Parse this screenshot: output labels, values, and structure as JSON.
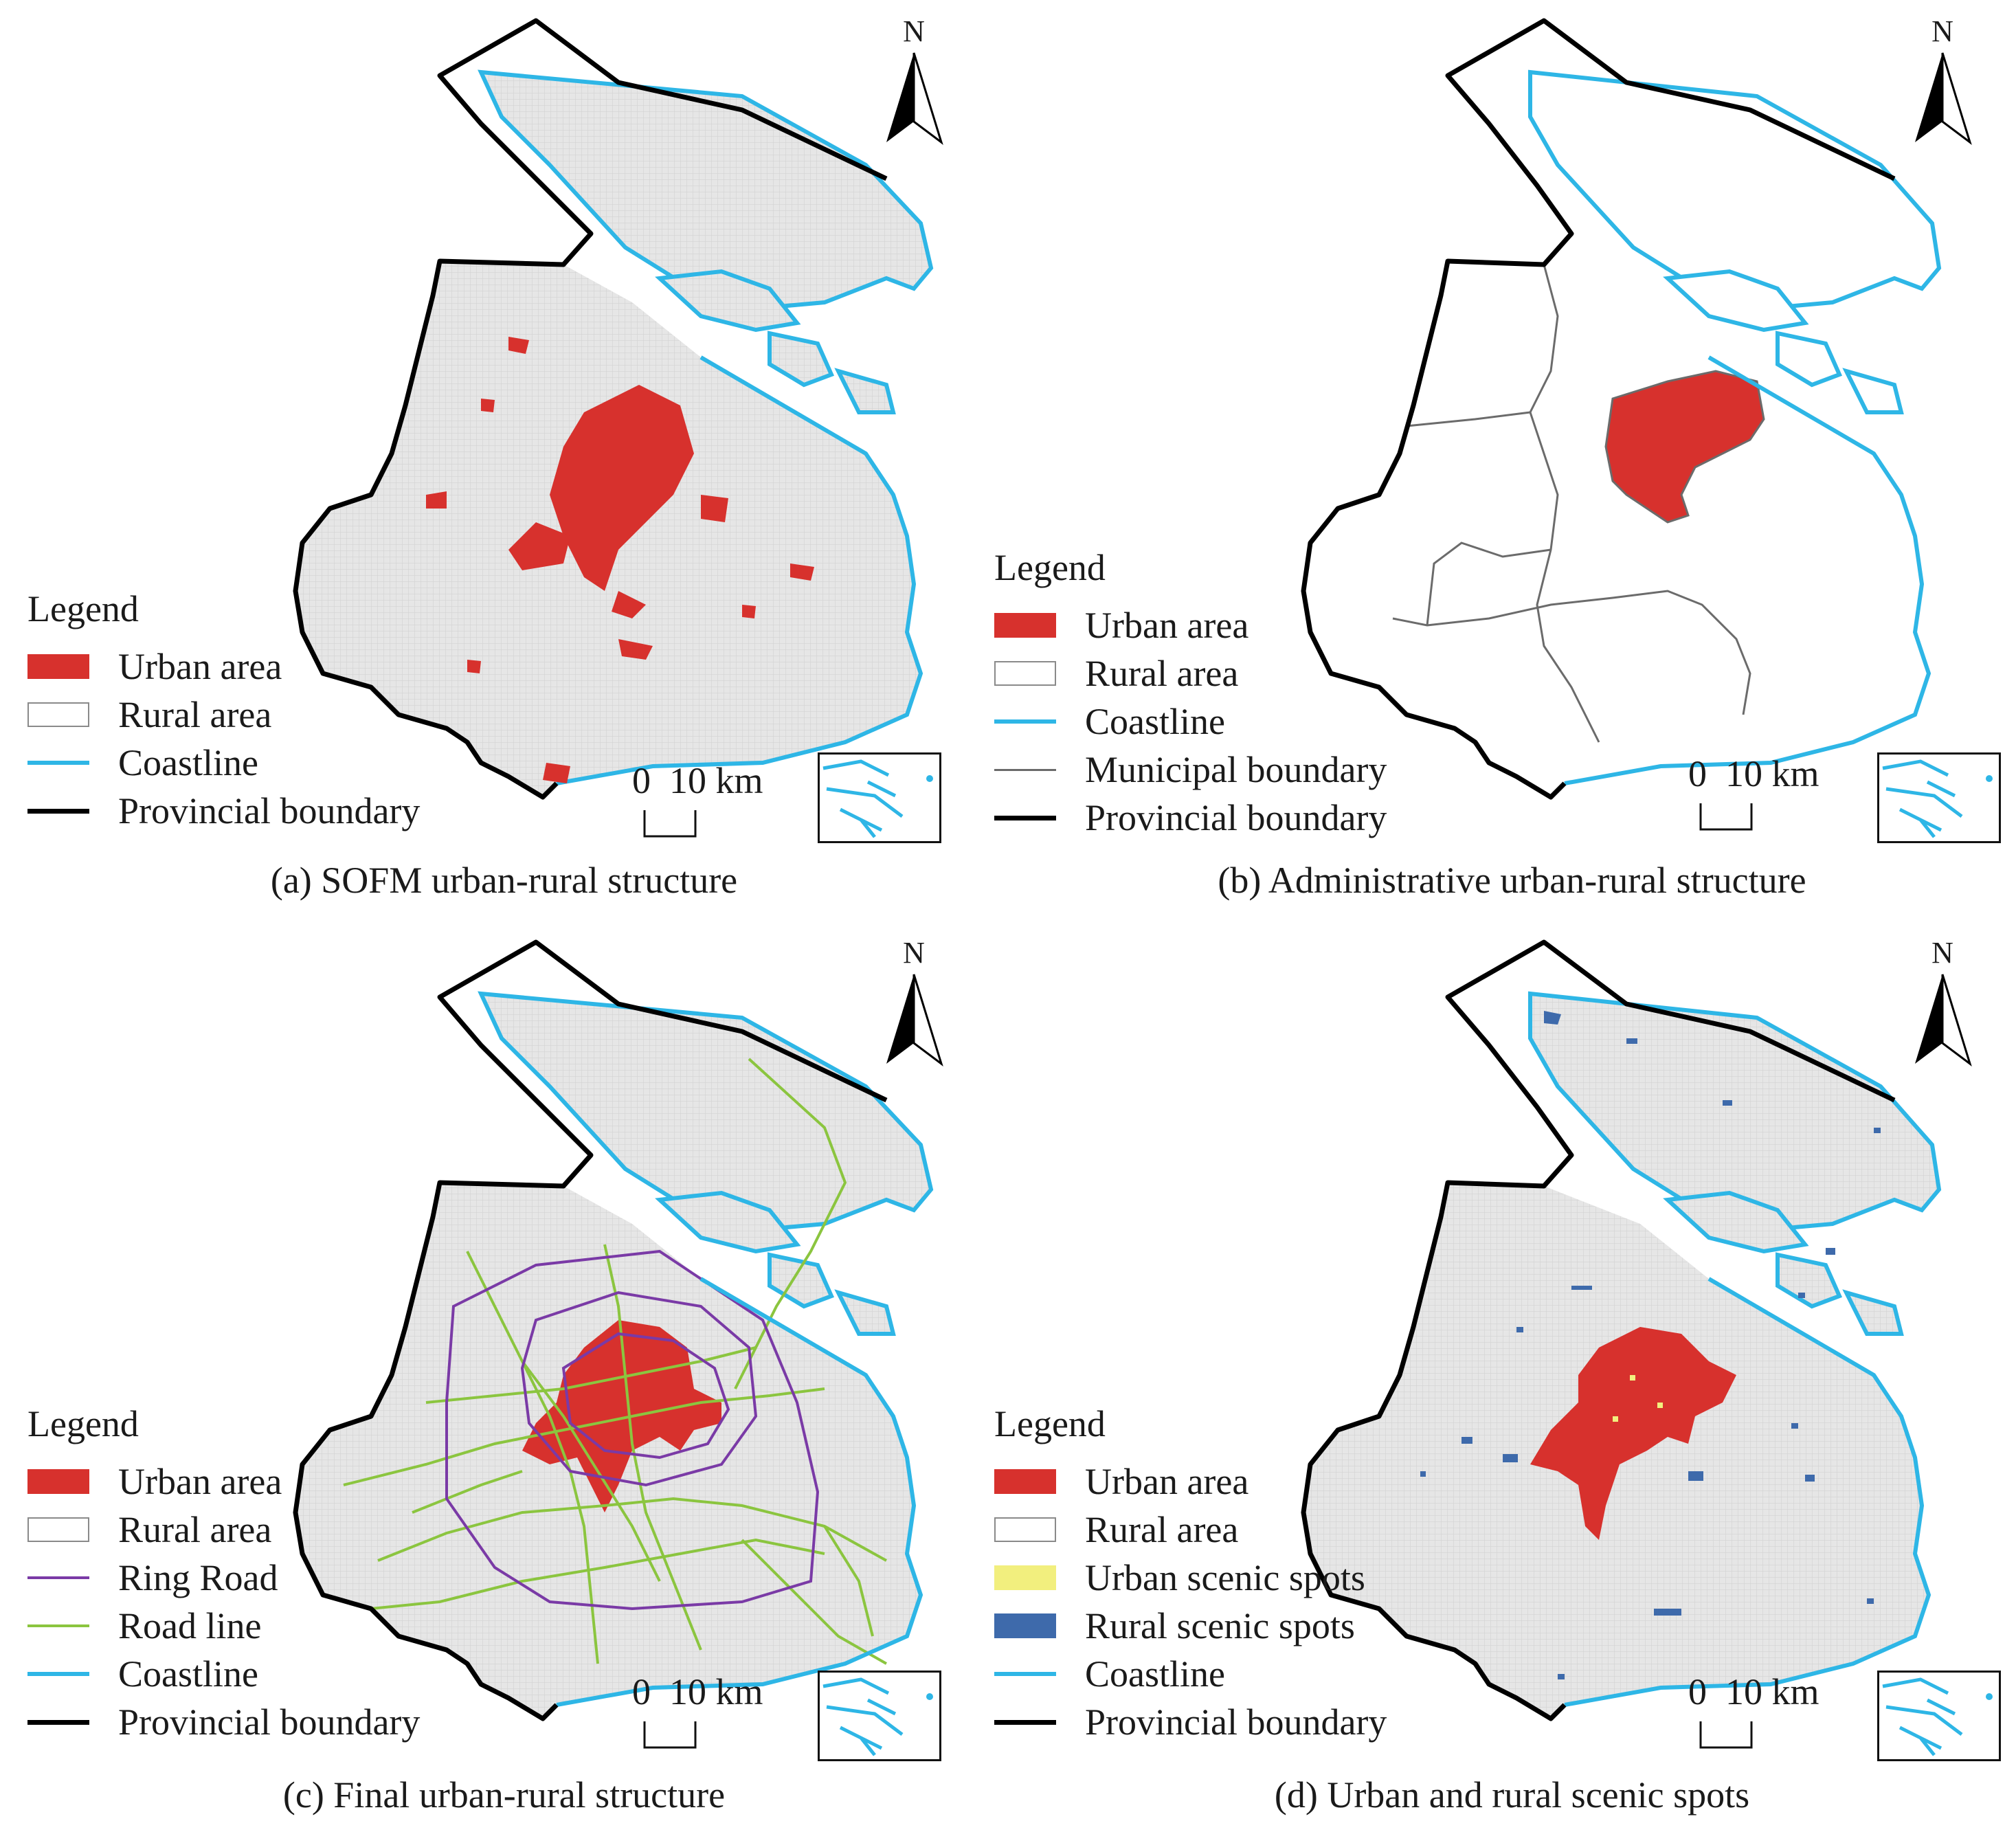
{
  "colors": {
    "urban": "#d7312d",
    "rural_fill": "#e4e4e4",
    "coastline": "#2eb6e6",
    "provincial": "#000000",
    "municipal": "#6b6b6b",
    "ring_road": "#7a3aa6",
    "road_line": "#8bc53f",
    "urban_scenic": "#f2ef7e",
    "rural_scenic": "#3e6aab"
  },
  "north_label": "N",
  "scale_label": "0  10 km",
  "legend_title": "Legend",
  "panels": {
    "a": {
      "caption": "(a) SOFM urban-rural structure",
      "legend": [
        {
          "label": "Urban area",
          "symbol": "fill-urban"
        },
        {
          "label": "Rural area",
          "symbol": "fill-rural"
        },
        {
          "label": "Coastline",
          "symbol": "line-coast"
        },
        {
          "label": "Provincial boundary",
          "symbol": "line-prov"
        }
      ]
    },
    "b": {
      "caption": "(b) Administrative urban-rural structure",
      "legend": [
        {
          "label": "Urban area",
          "symbol": "fill-urban"
        },
        {
          "label": "Rural area",
          "symbol": "fill-rural"
        },
        {
          "label": "Coastline",
          "symbol": "line-coast"
        },
        {
          "label": "Municipal boundary",
          "symbol": "line-muni"
        },
        {
          "label": "Provincial boundary",
          "symbol": "line-prov"
        }
      ]
    },
    "c": {
      "caption": "(c) Final urban-rural structure",
      "legend": [
        {
          "label": "Urban area",
          "symbol": "fill-urban"
        },
        {
          "label": "Rural area",
          "symbol": "fill-rural"
        },
        {
          "label": "Ring Road",
          "symbol": "line-ring"
        },
        {
          "label": "Road line",
          "symbol": "line-road"
        },
        {
          "label": "Coastline",
          "symbol": "line-coast"
        },
        {
          "label": "Provincial boundary",
          "symbol": "line-prov"
        }
      ]
    },
    "d": {
      "caption": "(d) Urban and rural scenic spots",
      "legend": [
        {
          "label": "Urban area",
          "symbol": "fill-urban"
        },
        {
          "label": "Rural area",
          "symbol": "fill-rural"
        },
        {
          "label": "Urban scenic spots",
          "symbol": "fill-yellow"
        },
        {
          "label": "Rural scenic spots",
          "symbol": "fill-blue"
        },
        {
          "label": "Coastline",
          "symbol": "line-coast"
        },
        {
          "label": "Provincial boundary",
          "symbol": "line-prov"
        }
      ]
    }
  }
}
